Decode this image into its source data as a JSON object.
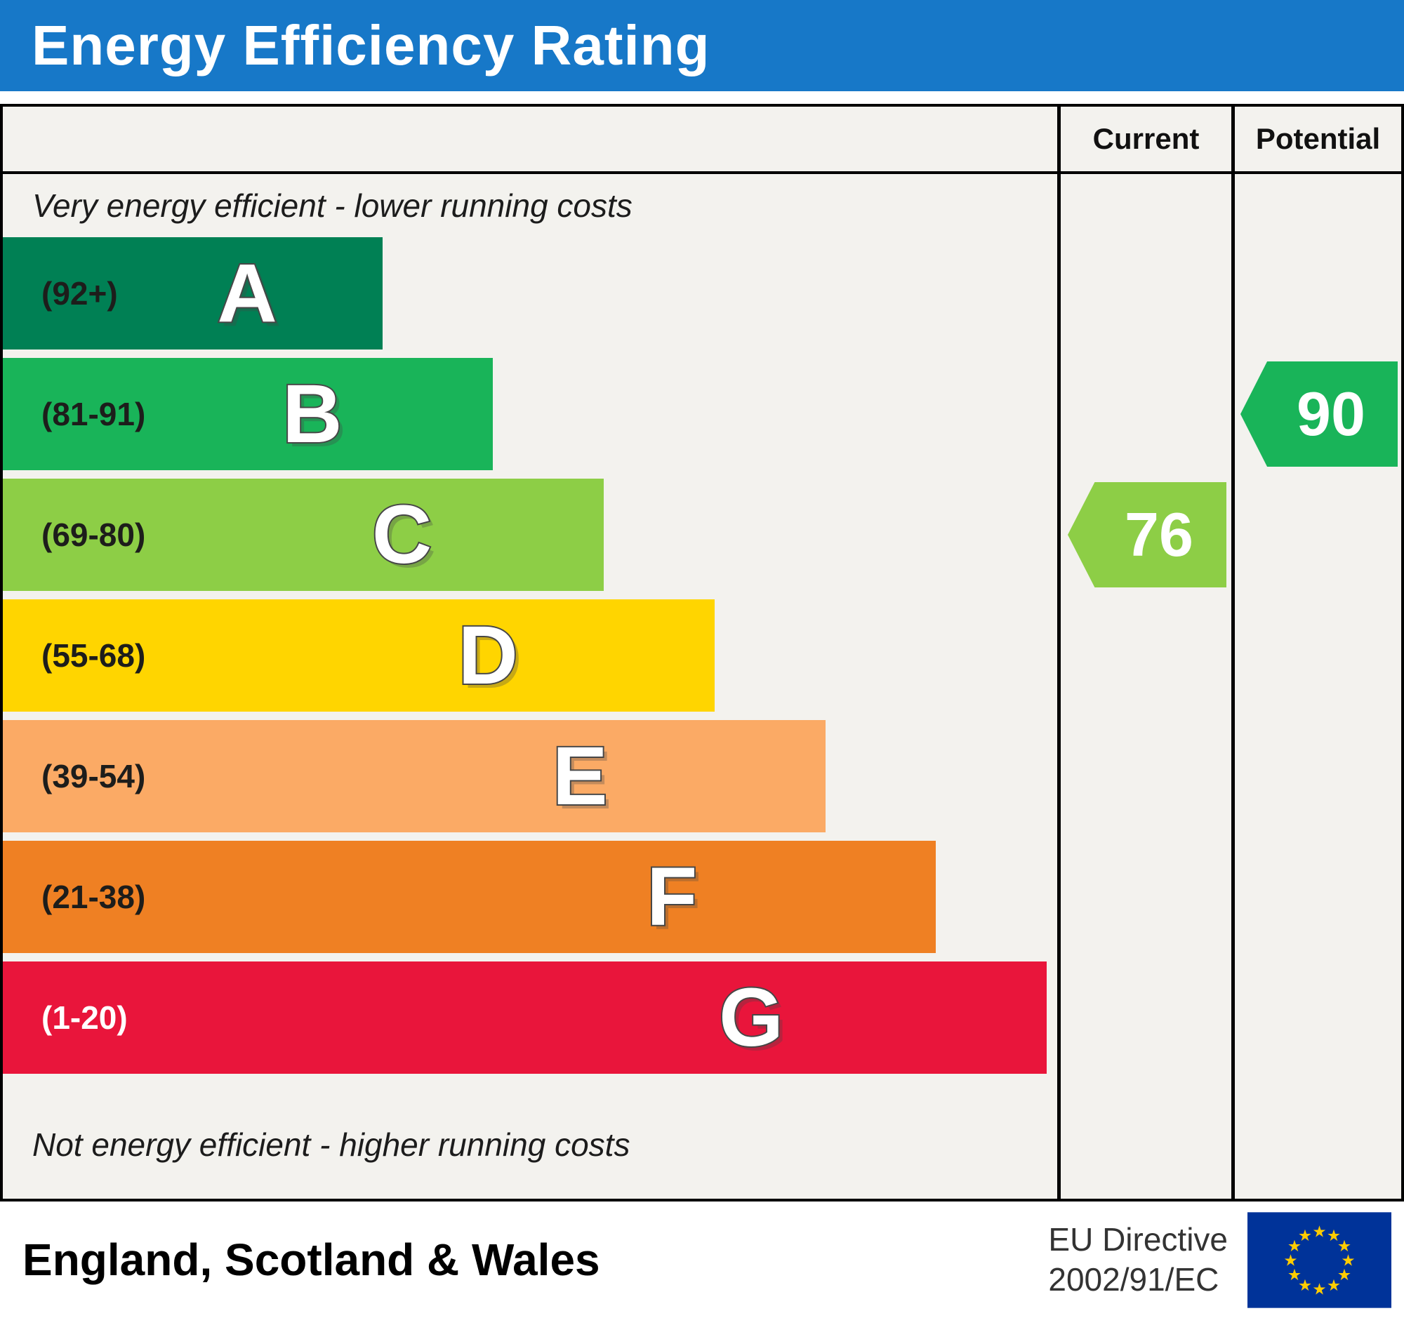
{
  "title": "Energy Efficiency Rating",
  "columns": {
    "current": "Current",
    "potential": "Potential"
  },
  "chart_data": {
    "type": "bar",
    "title": "Energy Efficiency Rating",
    "top_note": "Very energy efficient - lower running costs",
    "bottom_note": "Not energy efficient - higher running costs",
    "bands": [
      {
        "letter": "A",
        "range": "(92+)",
        "min": 92,
        "max": 100,
        "color": "#008054",
        "text_color": "#1d1d1b",
        "width_pct": 36
      },
      {
        "letter": "B",
        "range": "(81-91)",
        "min": 81,
        "max": 91,
        "color": "#19b459",
        "text_color": "#1d1d1b",
        "width_pct": 46.5
      },
      {
        "letter": "C",
        "range": "(69-80)",
        "min": 69,
        "max": 80,
        "color": "#8dce46",
        "text_color": "#1d1d1b",
        "width_pct": 57
      },
      {
        "letter": "D",
        "range": "(55-68)",
        "min": 55,
        "max": 68,
        "color": "#ffd500",
        "text_color": "#1d1d1b",
        "width_pct": 67.5
      },
      {
        "letter": "E",
        "range": "(39-54)",
        "min": 39,
        "max": 54,
        "color": "#fbaa65",
        "text_color": "#1d1d1b",
        "width_pct": 78
      },
      {
        "letter": "F",
        "range": "(21-38)",
        "min": 21,
        "max": 38,
        "color": "#ef8023",
        "text_color": "#1d1d1b",
        "width_pct": 88.5
      },
      {
        "letter": "G",
        "range": "(1-20)",
        "min": 1,
        "max": 20,
        "color": "#e9153b",
        "text_color": "#ffffff",
        "width_pct": 99
      }
    ],
    "current": {
      "value": "76",
      "band": "C",
      "band_index": 2,
      "color": "#8dce46"
    },
    "potential": {
      "value": "90",
      "band": "B",
      "band_index": 1,
      "color": "#19b459"
    }
  },
  "footer": {
    "region": "England, Scotland & Wales",
    "directive_line1": "EU Directive",
    "directive_line2": "2002/91/EC"
  },
  "colors": {
    "header_bg": "#1778c8",
    "table_bg": "#f3f2ee",
    "flag_blue": "#003399",
    "flag_star": "#ffcc00"
  }
}
